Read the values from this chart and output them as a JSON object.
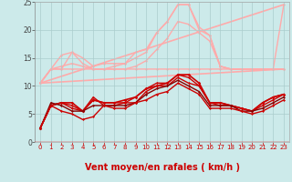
{
  "bg_color": "#cceaea",
  "grid_color": "#aacccc",
  "xlabel": "Vent moyen/en rafales ( km/h )",
  "xlabel_color": "#cc0000",
  "xlabel_fontsize": 7,
  "xtick_color": "#cc0000",
  "ytick_color": "#444444",
  "xlim": [
    -0.5,
    23.5
  ],
  "ylim": [
    0,
    25
  ],
  "yticks": [
    0,
    5,
    10,
    15,
    20,
    25
  ],
  "xticks": [
    0,
    1,
    2,
    3,
    4,
    5,
    6,
    7,
    8,
    9,
    10,
    11,
    12,
    13,
    14,
    15,
    16,
    17,
    18,
    19,
    20,
    21,
    22,
    23
  ],
  "series_light": [
    {
      "x": [
        0,
        1,
        2,
        3,
        4,
        5,
        6,
        7,
        8,
        9,
        10,
        11,
        12,
        13,
        14,
        15,
        16,
        17,
        18,
        19,
        20,
        21,
        22,
        23
      ],
      "y": [
        10.5,
        13.0,
        13.0,
        13.0,
        13.0,
        13.0,
        13.0,
        13.0,
        13.0,
        13.0,
        13.0,
        13.0,
        13.0,
        13.0,
        13.0,
        13.0,
        13.0,
        13.0,
        13.0,
        13.0,
        13.0,
        13.0,
        13.0,
        13.0
      ],
      "color": "#ffaaaa",
      "lw": 1.0,
      "marker": "D",
      "ms": 1.5
    },
    {
      "x": [
        0,
        1,
        2,
        3,
        4,
        5,
        6,
        7,
        8,
        9,
        10,
        11,
        12,
        13,
        14,
        15,
        16,
        17,
        18,
        19,
        20,
        21,
        22,
        23
      ],
      "y": [
        10.5,
        13.0,
        13.5,
        14.0,
        13.5,
        13.0,
        13.0,
        13.0,
        13.0,
        13.5,
        14.5,
        16.5,
        18.5,
        21.5,
        21.0,
        19.5,
        18.0,
        13.5,
        13.0,
        13.0,
        13.0,
        13.0,
        13.0,
        13.0
      ],
      "color": "#ffaaaa",
      "lw": 1.0,
      "marker": "D",
      "ms": 1.5
    },
    {
      "x": [
        0,
        1,
        2,
        3,
        4,
        5,
        6,
        7,
        8,
        9,
        10,
        11,
        12,
        13,
        14,
        15,
        16,
        17,
        18,
        19,
        20,
        21,
        22,
        23
      ],
      "y": [
        10.5,
        13.0,
        15.5,
        16.0,
        14.0,
        13.0,
        13.0,
        13.5,
        14.0,
        15.0,
        16.0,
        19.5,
        21.5,
        24.5,
        24.5,
        20.5,
        19.0,
        13.5,
        13.0,
        13.0,
        13.0,
        13.0,
        13.0,
        13.0
      ],
      "color": "#ffaaaa",
      "lw": 1.0,
      "marker": "D",
      "ms": 1.5
    },
    {
      "x": [
        0,
        1,
        2,
        3,
        4,
        5,
        6,
        7,
        8,
        9,
        10,
        11,
        12,
        13,
        14,
        15,
        16,
        17,
        18,
        19,
        20,
        21,
        22,
        23
      ],
      "y": [
        10.5,
        13.0,
        13.0,
        16.0,
        15.0,
        13.5,
        14.0,
        14.0,
        14.0,
        16.0,
        16.5,
        19.5,
        21.5,
        24.5,
        24.5,
        20.0,
        19.0,
        13.5,
        13.0,
        13.0,
        13.0,
        13.0,
        13.0,
        24.5
      ],
      "color": "#ffaaaa",
      "lw": 1.0,
      "marker": "D",
      "ms": 1.5
    },
    {
      "x": [
        0,
        23
      ],
      "y": [
        10.5,
        24.5
      ],
      "color": "#ffaaaa",
      "lw": 1.2,
      "marker": null,
      "ms": 0
    },
    {
      "x": [
        0,
        23
      ],
      "y": [
        10.5,
        13.0
      ],
      "color": "#ffaaaa",
      "lw": 1.2,
      "marker": null,
      "ms": 0
    }
  ],
  "series_dark": [
    {
      "x": [
        0,
        1,
        2,
        3,
        4,
        5,
        6,
        7,
        8,
        9,
        10,
        11,
        12,
        13,
        14,
        15,
        16,
        17,
        18,
        19,
        20,
        21,
        22,
        23
      ],
      "y": [
        2.5,
        6.5,
        7.0,
        7.0,
        5.5,
        7.5,
        7.0,
        7.0,
        7.5,
        8.0,
        9.5,
        10.0,
        10.5,
        12.0,
        12.0,
        10.5,
        7.0,
        7.0,
        6.5,
        6.0,
        5.5,
        7.0,
        8.0,
        8.5
      ],
      "color": "#cc0000",
      "lw": 1.2,
      "marker": "D",
      "ms": 1.8
    },
    {
      "x": [
        0,
        1,
        2,
        3,
        4,
        5,
        6,
        7,
        8,
        9,
        10,
        11,
        12,
        13,
        14,
        15,
        16,
        17,
        18,
        19,
        20,
        21,
        22,
        23
      ],
      "y": [
        2.5,
        6.5,
        7.0,
        6.5,
        5.5,
        7.5,
        7.0,
        7.0,
        7.0,
        8.0,
        9.5,
        10.5,
        10.5,
        12.0,
        11.5,
        10.0,
        7.0,
        7.0,
        6.5,
        6.0,
        5.5,
        7.0,
        8.0,
        8.5
      ],
      "color": "#cc0000",
      "lw": 1.0,
      "marker": "D",
      "ms": 1.5
    },
    {
      "x": [
        0,
        1,
        2,
        3,
        4,
        5,
        6,
        7,
        8,
        9,
        10,
        11,
        12,
        13,
        14,
        15,
        16,
        17,
        18,
        19,
        20,
        21,
        22,
        23
      ],
      "y": [
        2.5,
        6.5,
        7.0,
        6.0,
        5.5,
        8.0,
        6.5,
        6.5,
        7.0,
        7.0,
        9.0,
        10.0,
        10.0,
        11.5,
        10.5,
        10.0,
        7.0,
        6.5,
        6.5,
        6.0,
        5.5,
        6.5,
        7.5,
        8.5
      ],
      "color": "#cc0000",
      "lw": 1.0,
      "marker": "D",
      "ms": 1.5
    },
    {
      "x": [
        0,
        1,
        2,
        3,
        4,
        5,
        6,
        7,
        8,
        9,
        10,
        11,
        12,
        13,
        14,
        15,
        16,
        17,
        18,
        19,
        20,
        21,
        22,
        23
      ],
      "y": [
        2.5,
        7.0,
        6.5,
        5.5,
        5.5,
        6.5,
        6.5,
        6.5,
        6.5,
        7.0,
        8.5,
        9.5,
        10.0,
        11.0,
        10.0,
        9.0,
        6.5,
        6.5,
        6.5,
        5.5,
        5.5,
        6.0,
        7.0,
        8.0
      ],
      "color": "#880000",
      "lw": 1.0,
      "marker": "D",
      "ms": 1.5
    },
    {
      "x": [
        0,
        1,
        2,
        3,
        4,
        5,
        6,
        7,
        8,
        9,
        10,
        11,
        12,
        13,
        14,
        15,
        16,
        17,
        18,
        19,
        20,
        21,
        22,
        23
      ],
      "y": [
        2.5,
        6.5,
        5.5,
        5.0,
        4.0,
        4.5,
        6.5,
        6.0,
        6.0,
        7.0,
        7.5,
        8.5,
        9.0,
        10.5,
        9.5,
        8.5,
        6.0,
        6.0,
        6.0,
        5.5,
        5.0,
        5.5,
        6.5,
        7.5
      ],
      "color": "#cc0000",
      "lw": 1.0,
      "marker": "D",
      "ms": 1.5
    }
  ],
  "wind_symbols": [
    "←",
    "←",
    "←",
    "←",
    "←",
    "←",
    "←",
    "←",
    "←",
    "←",
    "↖",
    "↖",
    "↑",
    "↖",
    "↑",
    "↗",
    "↖",
    "↑",
    "↖",
    "←",
    "←",
    "←",
    "←",
    "↘"
  ],
  "wind_color": "#cc0000",
  "arrow_fontsize": 4.5
}
